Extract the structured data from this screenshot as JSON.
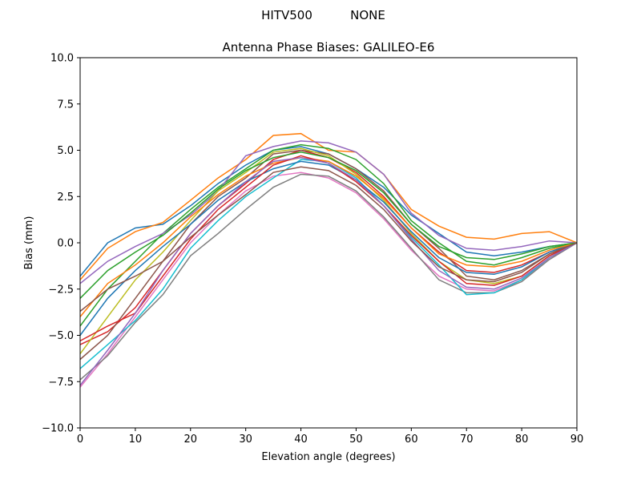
{
  "figure": {
    "suptitle_left": "HITV500",
    "suptitle_right": "NONE"
  },
  "chart_data": {
    "type": "line",
    "title": "Antenna Phase Biases: GALILEO-E6",
    "xlabel": "Elevation angle (degrees)",
    "ylabel": "Bias (mm)",
    "xlim": [
      0,
      90
    ],
    "ylim": [
      -10,
      10
    ],
    "xticks": [
      0,
      10,
      20,
      30,
      40,
      50,
      60,
      70,
      80,
      90
    ],
    "yticks": [
      -10.0,
      -7.5,
      -5.0,
      -2.5,
      0.0,
      2.5,
      5.0,
      7.5,
      10.0
    ],
    "ytick_labels": [
      "−10.0",
      "−7.5",
      "−5.0",
      "−2.5",
      "0.0",
      "2.5",
      "5.0",
      "7.5",
      "10.0"
    ],
    "grid": false,
    "x": [
      0,
      5,
      10,
      15,
      20,
      25,
      30,
      35,
      40,
      45,
      50,
      55,
      60,
      65,
      70,
      75,
      80,
      85,
      90
    ],
    "colors": [
      "#1f77b4",
      "#ff7f0e",
      "#2ca02c",
      "#d62728",
      "#9467bd",
      "#8c564b",
      "#e377c2",
      "#7f7f7f",
      "#bcbd22",
      "#17becf"
    ],
    "series": [
      {
        "values": [
          -1.8,
          0,
          0.8,
          1.0,
          2.0,
          3.2,
          4.2,
          5.0,
          5.2,
          4.8,
          4.0,
          3.0,
          1.5,
          0.5,
          -0.5,
          -0.7,
          -0.5,
          -0.2,
          0
        ]
      },
      {
        "values": [
          -2.0,
          -0.3,
          0.6,
          1.1,
          2.3,
          3.5,
          4.5,
          5.8,
          5.9,
          5.0,
          4.9,
          3.7,
          1.8,
          0.9,
          0.3,
          0.2,
          0.5,
          0.6,
          0
        ]
      },
      {
        "values": [
          -4.5,
          -2.5,
          -1.0,
          0.5,
          1.8,
          3.0,
          4.0,
          5.0,
          5.3,
          5.1,
          4.5,
          3.2,
          1.2,
          0.0,
          -1.0,
          -1.2,
          -0.8,
          -0.3,
          0
        ]
      },
      {
        "values": [
          -5.5,
          -4.8,
          -3.5,
          -1.5,
          0.5,
          2.0,
          3.2,
          4.5,
          5.0,
          4.6,
          3.8,
          2.5,
          0.8,
          -0.5,
          -1.5,
          -1.6,
          -1.2,
          -0.5,
          0
        ]
      },
      {
        "values": [
          -2.2,
          -1.0,
          -0.2,
          0.5,
          1.5,
          2.8,
          4.7,
          5.2,
          5.5,
          5.4,
          4.9,
          3.7,
          1.6,
          0.4,
          -0.3,
          -0.4,
          -0.2,
          0.1,
          0
        ]
      },
      {
        "values": [
          -6.3,
          -5.0,
          -3.0,
          -1.0,
          1.0,
          2.5,
          3.5,
          4.8,
          5.0,
          4.8,
          4.0,
          2.8,
          1.0,
          -0.3,
          -1.8,
          -2.0,
          -1.5,
          -0.6,
          0
        ]
      },
      {
        "values": [
          -7.8,
          -6.0,
          -4.0,
          -2.0,
          0.0,
          1.5,
          2.8,
          3.6,
          3.8,
          3.5,
          2.7,
          1.3,
          -0.4,
          -1.8,
          -2.5,
          -2.6,
          -2.0,
          -0.9,
          0
        ]
      },
      {
        "values": [
          -7.4,
          -6.1,
          -4.3,
          -2.8,
          -0.7,
          0.5,
          1.8,
          3.0,
          3.7,
          3.6,
          2.8,
          1.4,
          -0.3,
          -2.0,
          -2.7,
          -2.7,
          -2.1,
          -0.9,
          0
        ]
      },
      {
        "values": [
          -6.0,
          -4.0,
          -2.0,
          -0.5,
          1.2,
          2.8,
          3.8,
          4.9,
          5.1,
          4.7,
          3.7,
          2.3,
          0.5,
          -1.0,
          -2.0,
          -2.2,
          -1.8,
          -0.7,
          0
        ]
      },
      {
        "values": [
          -6.8,
          -5.5,
          -4.2,
          -2.5,
          -0.3,
          1.2,
          2.5,
          3.5,
          4.5,
          4.4,
          3.5,
          2.0,
          0.3,
          -1.2,
          -2.8,
          -2.7,
          -2.0,
          -0.8,
          0
        ]
      },
      {
        "values": [
          -5.0,
          -3.0,
          -1.5,
          -0.2,
          1.0,
          2.3,
          3.3,
          4.0,
          4.4,
          4.2,
          3.4,
          2.2,
          0.6,
          -0.8,
          -1.6,
          -1.7,
          -1.3,
          -0.5,
          0
        ]
      },
      {
        "values": [
          -4.0,
          -2.2,
          -1.2,
          0.0,
          1.4,
          2.6,
          3.6,
          4.3,
          4.6,
          4.4,
          3.6,
          2.4,
          0.8,
          -0.6,
          -1.2,
          -1.3,
          -1.0,
          -0.4,
          0
        ]
      },
      {
        "values": [
          -3.0,
          -1.5,
          -0.5,
          0.4,
          1.6,
          2.9,
          3.9,
          4.6,
          4.9,
          4.6,
          3.9,
          2.7,
          1.0,
          -0.2,
          -0.8,
          -0.9,
          -0.6,
          -0.2,
          0
        ]
      },
      {
        "values": [
          -5.3,
          -4.5,
          -3.8,
          -1.8,
          0.2,
          1.8,
          3.0,
          4.2,
          4.7,
          4.3,
          3.3,
          2.0,
          0.4,
          -1.0,
          -2.2,
          -2.3,
          -1.8,
          -0.7,
          0
        ]
      },
      {
        "values": [
          -7.7,
          -5.8,
          -3.8,
          -1.5,
          0.5,
          2.0,
          3.3,
          4.4,
          4.6,
          4.3,
          3.4,
          2.0,
          0.2,
          -1.5,
          -2.4,
          -2.5,
          -1.9,
          -0.8,
          0
        ]
      },
      {
        "values": [
          -3.7,
          -2.5,
          -1.8,
          -1.0,
          0.3,
          1.5,
          2.6,
          3.8,
          4.1,
          3.9,
          3.1,
          1.8,
          0.1,
          -1.3,
          -2.0,
          -2.1,
          -1.6,
          -0.6,
          0
        ]
      }
    ]
  }
}
